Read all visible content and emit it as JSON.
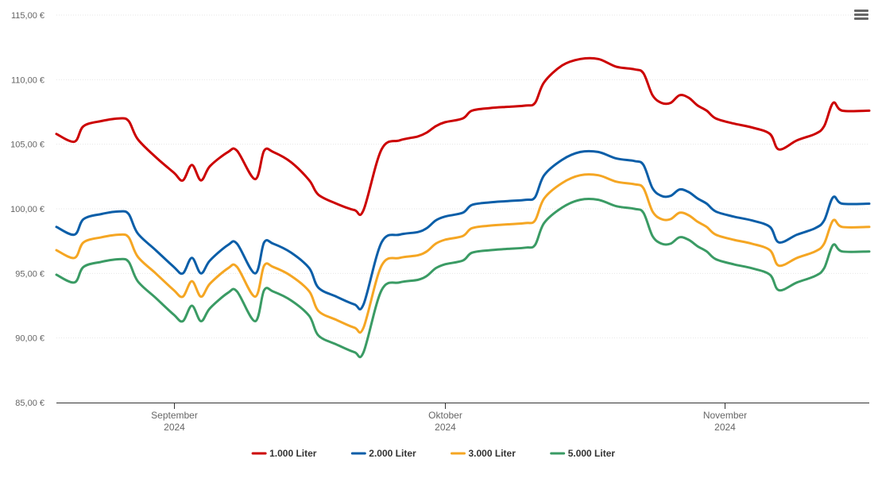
{
  "menu_icon": "hamburger-menu-icon",
  "chart_data": {
    "type": "line",
    "title": "",
    "xlabel": "",
    "ylabel": "",
    "ylim": [
      85,
      115
    ],
    "y_ticks": [
      "85,00 €",
      "90,00 €",
      "95,00 €",
      "100,00 €",
      "105,00 €",
      "110,00 €",
      "115,00 €"
    ],
    "y_tick_values": [
      85,
      90,
      95,
      100,
      105,
      110,
      115
    ],
    "x_range": [
      "2024-08-19",
      "2024-11-17"
    ],
    "x_ticks": [
      {
        "date": "2024-09-01",
        "month": "September",
        "year": "2024"
      },
      {
        "date": "2024-10-01",
        "month": "Oktober",
        "year": "2024"
      },
      {
        "date": "2024-11-01",
        "month": "November",
        "year": "2024"
      }
    ],
    "grid": true,
    "legend_position": "bottom-center",
    "series": [
      {
        "name": "1.000 Liter",
        "color": "#cc0000",
        "points": [
          [
            "2024-08-19",
            105.8
          ],
          [
            "2024-08-21",
            105.2
          ],
          [
            "2024-08-22",
            106.4
          ],
          [
            "2024-08-24",
            106.8
          ],
          [
            "2024-08-26",
            107.0
          ],
          [
            "2024-08-27",
            106.8
          ],
          [
            "2024-08-28",
            105.4
          ],
          [
            "2024-08-30",
            104.0
          ],
          [
            "2024-09-01",
            102.8
          ],
          [
            "2024-09-02",
            102.2
          ],
          [
            "2024-09-03",
            103.4
          ],
          [
            "2024-09-04",
            102.2
          ],
          [
            "2024-09-05",
            103.3
          ],
          [
            "2024-09-07",
            104.4
          ],
          [
            "2024-09-08",
            104.5
          ],
          [
            "2024-09-10",
            102.3
          ],
          [
            "2024-09-11",
            104.5
          ],
          [
            "2024-09-12",
            104.4
          ],
          [
            "2024-09-14",
            103.6
          ],
          [
            "2024-09-16",
            102.2
          ],
          [
            "2024-09-17",
            101.1
          ],
          [
            "2024-09-19",
            100.4
          ],
          [
            "2024-09-21",
            99.9
          ],
          [
            "2024-09-22",
            99.9
          ],
          [
            "2024-09-24",
            104.6
          ],
          [
            "2024-09-26",
            105.3
          ],
          [
            "2024-09-28",
            105.6
          ],
          [
            "2024-09-29",
            105.9
          ],
          [
            "2024-09-30",
            106.4
          ],
          [
            "2024-10-01",
            106.7
          ],
          [
            "2024-10-03",
            107.0
          ],
          [
            "2024-10-04",
            107.6
          ],
          [
            "2024-10-06",
            107.8
          ],
          [
            "2024-10-08",
            107.9
          ],
          [
            "2024-10-10",
            108.0
          ],
          [
            "2024-10-11",
            108.2
          ],
          [
            "2024-10-12",
            109.8
          ],
          [
            "2024-10-14",
            111.1
          ],
          [
            "2024-10-16",
            111.6
          ],
          [
            "2024-10-18",
            111.6
          ],
          [
            "2024-10-20",
            111.0
          ],
          [
            "2024-10-22",
            110.8
          ],
          [
            "2024-10-23",
            110.5
          ],
          [
            "2024-10-24",
            108.8
          ],
          [
            "2024-10-25",
            108.2
          ],
          [
            "2024-10-26",
            108.2
          ],
          [
            "2024-10-27",
            108.8
          ],
          [
            "2024-10-28",
            108.6
          ],
          [
            "2024-10-29",
            108.0
          ],
          [
            "2024-10-30",
            107.6
          ],
          [
            "2024-10-31",
            107.0
          ],
          [
            "2024-11-02",
            106.6
          ],
          [
            "2024-11-04",
            106.3
          ],
          [
            "2024-11-06",
            105.8
          ],
          [
            "2024-11-07",
            104.6
          ],
          [
            "2024-11-09",
            105.3
          ],
          [
            "2024-11-11",
            105.8
          ],
          [
            "2024-11-12",
            106.4
          ],
          [
            "2024-11-13",
            108.2
          ],
          [
            "2024-11-14",
            107.6
          ],
          [
            "2024-11-17",
            107.6
          ]
        ]
      },
      {
        "name": "2.000 Liter",
        "color": "#0a5ea8",
        "points": [
          [
            "2024-08-19",
            98.6
          ],
          [
            "2024-08-21",
            98.0
          ],
          [
            "2024-08-22",
            99.2
          ],
          [
            "2024-08-24",
            99.6
          ],
          [
            "2024-08-26",
            99.8
          ],
          [
            "2024-08-27",
            99.6
          ],
          [
            "2024-08-28",
            98.1
          ],
          [
            "2024-08-30",
            96.8
          ],
          [
            "2024-09-01",
            95.5
          ],
          [
            "2024-09-02",
            95.0
          ],
          [
            "2024-09-03",
            96.2
          ],
          [
            "2024-09-04",
            95.0
          ],
          [
            "2024-09-05",
            96.0
          ],
          [
            "2024-09-07",
            97.2
          ],
          [
            "2024-09-08",
            97.3
          ],
          [
            "2024-09-10",
            95.0
          ],
          [
            "2024-09-11",
            97.4
          ],
          [
            "2024-09-12",
            97.3
          ],
          [
            "2024-09-14",
            96.6
          ],
          [
            "2024-09-16",
            95.4
          ],
          [
            "2024-09-17",
            93.9
          ],
          [
            "2024-09-19",
            93.2
          ],
          [
            "2024-09-21",
            92.6
          ],
          [
            "2024-09-22",
            92.6
          ],
          [
            "2024-09-24",
            97.4
          ],
          [
            "2024-09-26",
            98.0
          ],
          [
            "2024-09-28",
            98.2
          ],
          [
            "2024-09-29",
            98.5
          ],
          [
            "2024-09-30",
            99.1
          ],
          [
            "2024-10-01",
            99.4
          ],
          [
            "2024-10-03",
            99.7
          ],
          [
            "2024-10-04",
            100.3
          ],
          [
            "2024-10-06",
            100.5
          ],
          [
            "2024-10-08",
            100.6
          ],
          [
            "2024-10-10",
            100.7
          ],
          [
            "2024-10-11",
            100.9
          ],
          [
            "2024-10-12",
            102.6
          ],
          [
            "2024-10-14",
            103.8
          ],
          [
            "2024-10-16",
            104.4
          ],
          [
            "2024-10-18",
            104.4
          ],
          [
            "2024-10-20",
            103.9
          ],
          [
            "2024-10-22",
            103.7
          ],
          [
            "2024-10-23",
            103.4
          ],
          [
            "2024-10-24",
            101.6
          ],
          [
            "2024-10-25",
            101.0
          ],
          [
            "2024-10-26",
            101.0
          ],
          [
            "2024-10-27",
            101.5
          ],
          [
            "2024-10-28",
            101.3
          ],
          [
            "2024-10-29",
            100.8
          ],
          [
            "2024-10-30",
            100.4
          ],
          [
            "2024-10-31",
            99.8
          ],
          [
            "2024-11-02",
            99.4
          ],
          [
            "2024-11-04",
            99.1
          ],
          [
            "2024-11-06",
            98.6
          ],
          [
            "2024-11-07",
            97.4
          ],
          [
            "2024-11-09",
            98.0
          ],
          [
            "2024-11-11",
            98.5
          ],
          [
            "2024-11-12",
            99.1
          ],
          [
            "2024-11-13",
            100.9
          ],
          [
            "2024-11-14",
            100.4
          ],
          [
            "2024-11-17",
            100.4
          ]
        ]
      },
      {
        "name": "3.000 Liter",
        "color": "#f5a623",
        "points": [
          [
            "2024-08-19",
            96.8
          ],
          [
            "2024-08-21",
            96.2
          ],
          [
            "2024-08-22",
            97.4
          ],
          [
            "2024-08-24",
            97.8
          ],
          [
            "2024-08-26",
            98.0
          ],
          [
            "2024-08-27",
            97.8
          ],
          [
            "2024-08-28",
            96.3
          ],
          [
            "2024-08-30",
            95.0
          ],
          [
            "2024-09-01",
            93.7
          ],
          [
            "2024-09-02",
            93.2
          ],
          [
            "2024-09-03",
            94.4
          ],
          [
            "2024-09-04",
            93.2
          ],
          [
            "2024-09-05",
            94.2
          ],
          [
            "2024-09-07",
            95.4
          ],
          [
            "2024-09-08",
            95.5
          ],
          [
            "2024-09-10",
            93.2
          ],
          [
            "2024-09-11",
            95.6
          ],
          [
            "2024-09-12",
            95.5
          ],
          [
            "2024-09-14",
            94.8
          ],
          [
            "2024-09-16",
            93.6
          ],
          [
            "2024-09-17",
            92.1
          ],
          [
            "2024-09-19",
            91.4
          ],
          [
            "2024-09-21",
            90.8
          ],
          [
            "2024-09-22",
            90.8
          ],
          [
            "2024-09-24",
            95.6
          ],
          [
            "2024-09-26",
            96.2
          ],
          [
            "2024-09-28",
            96.4
          ],
          [
            "2024-09-29",
            96.7
          ],
          [
            "2024-09-30",
            97.3
          ],
          [
            "2024-10-01",
            97.6
          ],
          [
            "2024-10-03",
            97.9
          ],
          [
            "2024-10-04",
            98.5
          ],
          [
            "2024-10-06",
            98.7
          ],
          [
            "2024-10-08",
            98.8
          ],
          [
            "2024-10-10",
            98.9
          ],
          [
            "2024-10-11",
            99.1
          ],
          [
            "2024-10-12",
            100.8
          ],
          [
            "2024-10-14",
            102.0
          ],
          [
            "2024-10-16",
            102.6
          ],
          [
            "2024-10-18",
            102.6
          ],
          [
            "2024-10-20",
            102.1
          ],
          [
            "2024-10-22",
            101.9
          ],
          [
            "2024-10-23",
            101.6
          ],
          [
            "2024-10-24",
            99.8
          ],
          [
            "2024-10-25",
            99.2
          ],
          [
            "2024-10-26",
            99.2
          ],
          [
            "2024-10-27",
            99.7
          ],
          [
            "2024-10-28",
            99.5
          ],
          [
            "2024-10-29",
            99.0
          ],
          [
            "2024-10-30",
            98.6
          ],
          [
            "2024-10-31",
            98.0
          ],
          [
            "2024-11-02",
            97.6
          ],
          [
            "2024-11-04",
            97.3
          ],
          [
            "2024-11-06",
            96.8
          ],
          [
            "2024-11-07",
            95.6
          ],
          [
            "2024-11-09",
            96.2
          ],
          [
            "2024-11-11",
            96.7
          ],
          [
            "2024-11-12",
            97.3
          ],
          [
            "2024-11-13",
            99.1
          ],
          [
            "2024-11-14",
            98.6
          ],
          [
            "2024-11-17",
            98.6
          ]
        ]
      },
      {
        "name": "5.000 Liter",
        "color": "#3a9b64",
        "points": [
          [
            "2024-08-19",
            94.9
          ],
          [
            "2024-08-21",
            94.3
          ],
          [
            "2024-08-22",
            95.5
          ],
          [
            "2024-08-24",
            95.9
          ],
          [
            "2024-08-26",
            96.1
          ],
          [
            "2024-08-27",
            95.9
          ],
          [
            "2024-08-28",
            94.4
          ],
          [
            "2024-08-30",
            93.1
          ],
          [
            "2024-09-01",
            91.8
          ],
          [
            "2024-09-02",
            91.3
          ],
          [
            "2024-09-03",
            92.5
          ],
          [
            "2024-09-04",
            91.3
          ],
          [
            "2024-09-05",
            92.3
          ],
          [
            "2024-09-07",
            93.5
          ],
          [
            "2024-09-08",
            93.6
          ],
          [
            "2024-09-10",
            91.3
          ],
          [
            "2024-09-11",
            93.7
          ],
          [
            "2024-09-12",
            93.6
          ],
          [
            "2024-09-14",
            92.9
          ],
          [
            "2024-09-16",
            91.7
          ],
          [
            "2024-09-17",
            90.2
          ],
          [
            "2024-09-19",
            89.5
          ],
          [
            "2024-09-21",
            88.9
          ],
          [
            "2024-09-22",
            88.9
          ],
          [
            "2024-09-24",
            93.7
          ],
          [
            "2024-09-26",
            94.3
          ],
          [
            "2024-09-28",
            94.5
          ],
          [
            "2024-09-29",
            94.8
          ],
          [
            "2024-09-30",
            95.4
          ],
          [
            "2024-10-01",
            95.7
          ],
          [
            "2024-10-03",
            96.0
          ],
          [
            "2024-10-04",
            96.6
          ],
          [
            "2024-10-06",
            96.8
          ],
          [
            "2024-10-08",
            96.9
          ],
          [
            "2024-10-10",
            97.0
          ],
          [
            "2024-10-11",
            97.2
          ],
          [
            "2024-10-12",
            98.9
          ],
          [
            "2024-10-14",
            100.1
          ],
          [
            "2024-10-16",
            100.7
          ],
          [
            "2024-10-18",
            100.7
          ],
          [
            "2024-10-20",
            100.2
          ],
          [
            "2024-10-22",
            100.0
          ],
          [
            "2024-10-23",
            99.7
          ],
          [
            "2024-10-24",
            97.9
          ],
          [
            "2024-10-25",
            97.3
          ],
          [
            "2024-10-26",
            97.3
          ],
          [
            "2024-10-27",
            97.8
          ],
          [
            "2024-10-28",
            97.6
          ],
          [
            "2024-10-29",
            97.1
          ],
          [
            "2024-10-30",
            96.7
          ],
          [
            "2024-10-31",
            96.1
          ],
          [
            "2024-11-02",
            95.7
          ],
          [
            "2024-11-04",
            95.4
          ],
          [
            "2024-11-06",
            94.9
          ],
          [
            "2024-11-07",
            93.7
          ],
          [
            "2024-11-09",
            94.3
          ],
          [
            "2024-11-11",
            94.8
          ],
          [
            "2024-11-12",
            95.4
          ],
          [
            "2024-11-13",
            97.2
          ],
          [
            "2024-11-14",
            96.7
          ],
          [
            "2024-11-17",
            96.7
          ]
        ]
      }
    ]
  }
}
